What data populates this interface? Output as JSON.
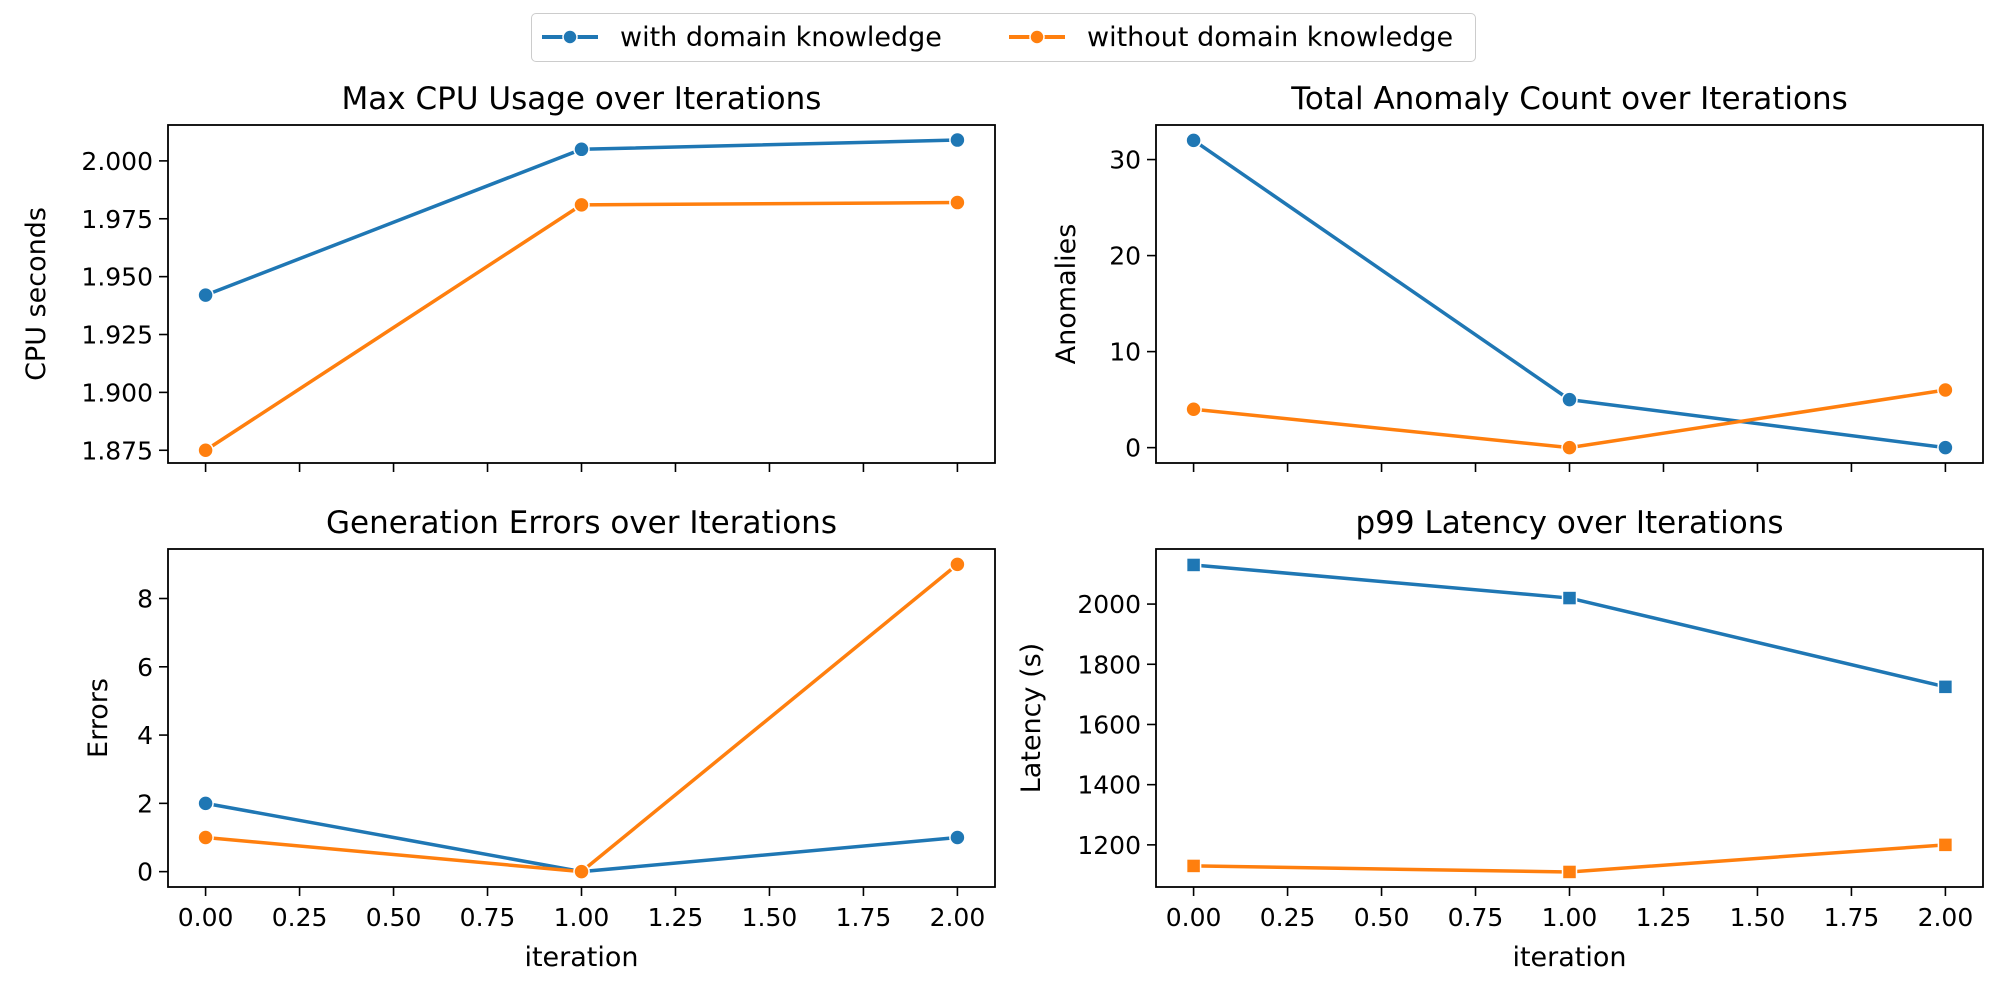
{
  "legend": {
    "series_names": [
      "with domain knowledge",
      "without domain knowledge"
    ]
  },
  "colors": {
    "series": [
      "#1f77b4",
      "#ff7f0e"
    ],
    "axes": "#000000",
    "legend_border": "#cccccc"
  },
  "chart_data": [
    {
      "type": "line",
      "title": "Max CPU Usage over Iterations",
      "xlabel": "",
      "ylabel": "CPU seconds",
      "marker": "circle",
      "xlim": [
        -0.1,
        2.1
      ],
      "ylim": [
        1.8695,
        2.0155
      ],
      "xticks": [
        0.0,
        0.25,
        0.5,
        0.75,
        1.0,
        1.25,
        1.5,
        1.75,
        2.0
      ],
      "xtick_labels": [],
      "yticks": [
        1.875,
        1.9,
        1.925,
        1.95,
        1.975,
        2.0
      ],
      "ytick_labels": [
        "1.875",
        "1.900",
        "1.925",
        "1.950",
        "1.975",
        "2.000"
      ],
      "x": [
        0,
        1,
        2
      ],
      "series": [
        {
          "name": "with domain knowledge",
          "values": [
            1.942,
            2.005,
            2.009
          ]
        },
        {
          "name": "without domain knowledge",
          "values": [
            1.875,
            1.981,
            1.982
          ]
        }
      ]
    },
    {
      "type": "line",
      "title": "Total Anomaly Count over Iterations",
      "xlabel": "",
      "ylabel": "Anomalies",
      "marker": "circle",
      "xlim": [
        -0.1,
        2.1
      ],
      "ylim": [
        -1.6,
        33.6
      ],
      "xticks": [
        0.0,
        0.25,
        0.5,
        0.75,
        1.0,
        1.25,
        1.5,
        1.75,
        2.0
      ],
      "xtick_labels": [],
      "yticks": [
        0,
        10,
        20,
        30
      ],
      "ytick_labels": [
        "0",
        "10",
        "20",
        "30"
      ],
      "x": [
        0,
        1,
        2
      ],
      "series": [
        {
          "name": "with domain knowledge",
          "values": [
            32,
            5,
            0
          ]
        },
        {
          "name": "without domain knowledge",
          "values": [
            4,
            0,
            6
          ]
        }
      ]
    },
    {
      "type": "line",
      "title": "Generation Errors over Iterations",
      "xlabel": "iteration",
      "ylabel": "Errors",
      "marker": "circle",
      "xlim": [
        -0.1,
        2.1
      ],
      "ylim": [
        -0.45,
        9.45
      ],
      "xticks": [
        0.0,
        0.25,
        0.5,
        0.75,
        1.0,
        1.25,
        1.5,
        1.75,
        2.0
      ],
      "xtick_labels": [
        "0.00",
        "0.25",
        "0.50",
        "0.75",
        "1.00",
        "1.25",
        "1.50",
        "1.75",
        "2.00"
      ],
      "yticks": [
        0,
        2,
        4,
        6,
        8
      ],
      "ytick_labels": [
        "0",
        "2",
        "4",
        "6",
        "8"
      ],
      "x": [
        0,
        1,
        2
      ],
      "series": [
        {
          "name": "with domain knowledge",
          "values": [
            2,
            0,
            1
          ]
        },
        {
          "name": "without domain knowledge",
          "values": [
            1,
            0,
            9
          ]
        }
      ]
    },
    {
      "type": "line",
      "title": "p99 Latency over Iterations",
      "xlabel": "iteration",
      "ylabel": "Latency (s)",
      "marker": "square",
      "xlim": [
        -0.1,
        2.1
      ],
      "ylim": [
        1060,
        2183
      ],
      "xticks": [
        0.0,
        0.25,
        0.5,
        0.75,
        1.0,
        1.25,
        1.5,
        1.75,
        2.0
      ],
      "xtick_labels": [
        "0.00",
        "0.25",
        "0.50",
        "0.75",
        "1.00",
        "1.25",
        "1.50",
        "1.75",
        "2.00"
      ],
      "yticks": [
        1200,
        1400,
        1600,
        1800,
        2000
      ],
      "ytick_labels": [
        "1200",
        "1400",
        "1600",
        "1800",
        "2000"
      ],
      "x": [
        0,
        1,
        2
      ],
      "series": [
        {
          "name": "with domain knowledge",
          "values": [
            2130,
            2020,
            1725
          ]
        },
        {
          "name": "without domain knowledge",
          "values": [
            1130,
            1110,
            1200
          ]
        }
      ]
    }
  ]
}
